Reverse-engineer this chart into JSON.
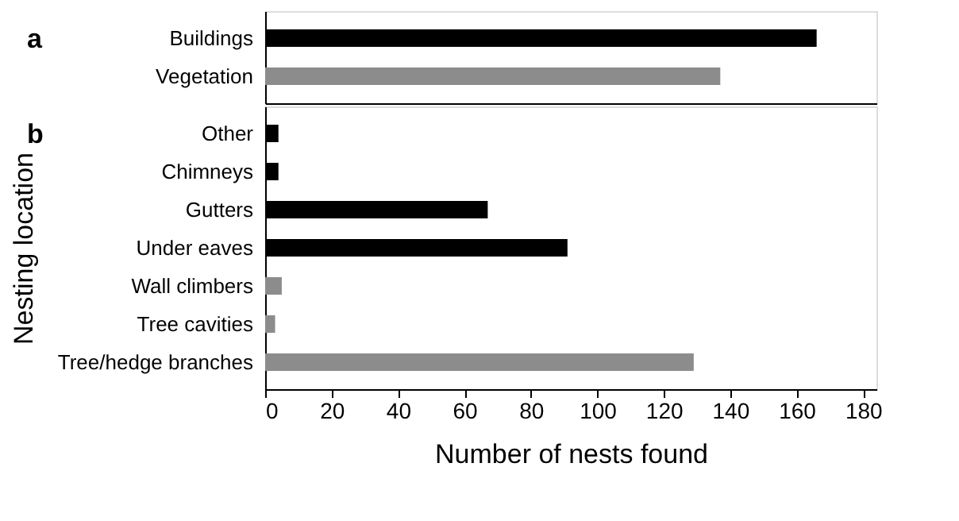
{
  "chart_data": [
    {
      "type": "bar",
      "orientation": "horizontal",
      "annotations": [
        "a"
      ],
      "categories": [
        "Buildings",
        "Vegetation"
      ],
      "values": [
        166,
        137
      ],
      "colors": [
        "#000000",
        "#8c8c8c"
      ],
      "xlim": [
        0,
        184
      ],
      "tick_labels": "y"
    },
    {
      "type": "bar",
      "orientation": "horizontal",
      "annotations": [
        "b"
      ],
      "ylabel": "Nesting location",
      "xlabel": "Number of nests found",
      "categories": [
        "Other",
        "Chimneys",
        "Gutters",
        "Under eaves",
        "Wall climbers",
        "Tree cavities",
        "Tree/hedge branches"
      ],
      "values": [
        4,
        4,
        67,
        91,
        5,
        3,
        129
      ],
      "colors": [
        "#000000",
        "#000000",
        "#000000",
        "#000000",
        "#8c8c8c",
        "#8c8c8c",
        "#8c8c8c"
      ],
      "xlim": [
        0,
        184
      ],
      "xticks": [
        0,
        20,
        40,
        60,
        80,
        100,
        120,
        140,
        160,
        180
      ]
    }
  ]
}
